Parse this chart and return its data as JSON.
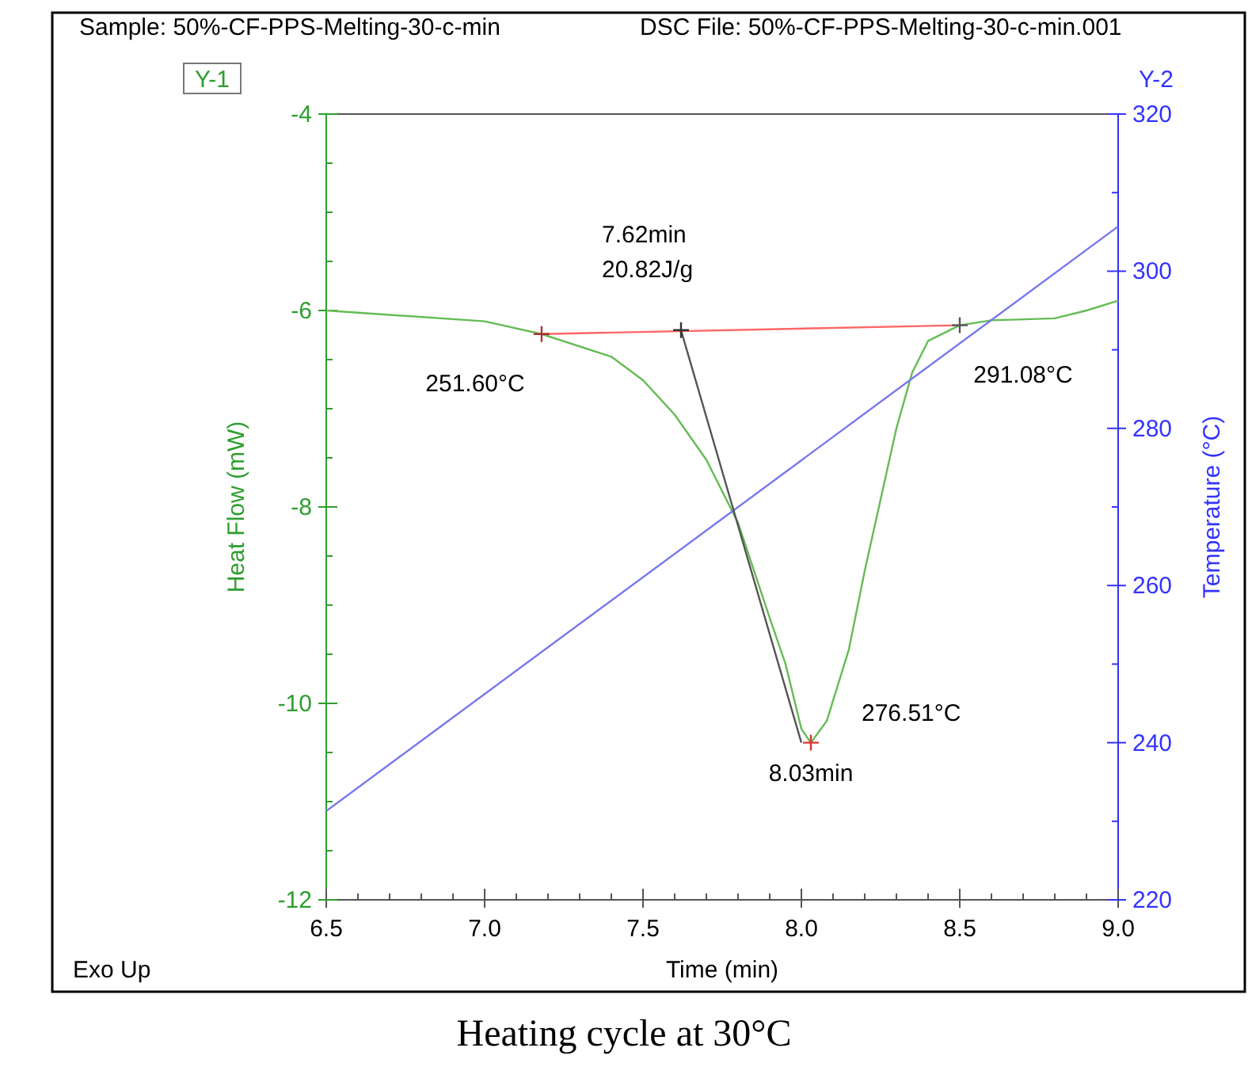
{
  "chart_data": {
    "type": "line",
    "title": "Heating cycle at 30°C",
    "xlabel": "Time (min)",
    "ylabel": "Heat Flow (mW)",
    "y2label": "Temperature (°C)",
    "xlim": [
      6.5,
      9.0
    ],
    "xticks": [
      {
        "value": 6.5,
        "label": "6.5"
      },
      {
        "value": 7.0,
        "label": "7.0"
      },
      {
        "value": 7.5,
        "label": "7.5"
      },
      {
        "value": 8.0,
        "label": "8.0"
      },
      {
        "value": 8.5,
        "label": "8.5"
      },
      {
        "value": 9.0,
        "label": "9.0"
      }
    ],
    "ylim": [
      -12,
      -4
    ],
    "yticks": [
      -12,
      -10,
      -8,
      -6,
      -4
    ],
    "y2lim": [
      220,
      320
    ],
    "y2ticks": [
      220,
      240,
      260,
      280,
      300,
      320
    ],
    "grid": false,
    "line_style": "solid",
    "series": [
      {
        "color": "#66bb55",
        "x": [
          6.5,
          7.0,
          7.18,
          7.4,
          7.5,
          7.6,
          7.7,
          7.8,
          7.9,
          7.95,
          8.0,
          8.03,
          8.08,
          8.15,
          8.2,
          8.3,
          8.35,
          8.4,
          8.5,
          8.6,
          8.8,
          8.9,
          9.0
        ],
        "values": [
          -6.0,
          -6.11,
          -6.24,
          -6.47,
          -6.71,
          -7.06,
          -7.52,
          -8.16,
          -9.13,
          -9.6,
          -10.26,
          -10.4,
          -10.18,
          -9.45,
          -8.65,
          -7.2,
          -6.63,
          -6.31,
          -6.15,
          -6.1,
          -6.08,
          -6.0,
          -5.9
        ]
      },
      {
        "color": "#7777ee",
        "axis": "y2",
        "x": [
          6.5,
          9.0
        ],
        "values": [
          231.3,
          305.7
        ]
      },
      {
        "color": "#ff6666",
        "x": [
          7.18,
          8.5
        ],
        "values": [
          -6.24,
          -6.15
        ]
      },
      {
        "color": "#555555",
        "x": [
          7.62,
          8.0
        ],
        "values": [
          -6.2,
          -10.4
        ]
      },
      {
        "type": "scatter",
        "marker": "cross",
        "colors": [
          "#aa3333",
          "#333333",
          "#555555",
          "#dd3333"
        ],
        "x": [
          7.18,
          7.62,
          8.5,
          8.03
        ],
        "values": [
          -6.24,
          -6.2,
          -6.15,
          -10.4
        ]
      }
    ],
    "annotations": [
      "Sample: 50%-CF-PPS-Melting-30-c-min",
      "DSC File: 50%-CF-PPS-Melting-30-c-min.001",
      "Exo Up",
      "Y-1",
      "Y-2",
      "7.62min",
      "20.82J/g",
      {
        "text": "251.60°C",
        "x": 7.18,
        "y": -6.24
      },
      {
        "text": "291.08°C",
        "x": 8.5,
        "y": -6.15
      },
      {
        "text": "276.51°C",
        "x": 8.03,
        "y": -10.4
      },
      {
        "text": "8.03min",
        "x": 8.03,
        "y": -10.4
      }
    ]
  }
}
